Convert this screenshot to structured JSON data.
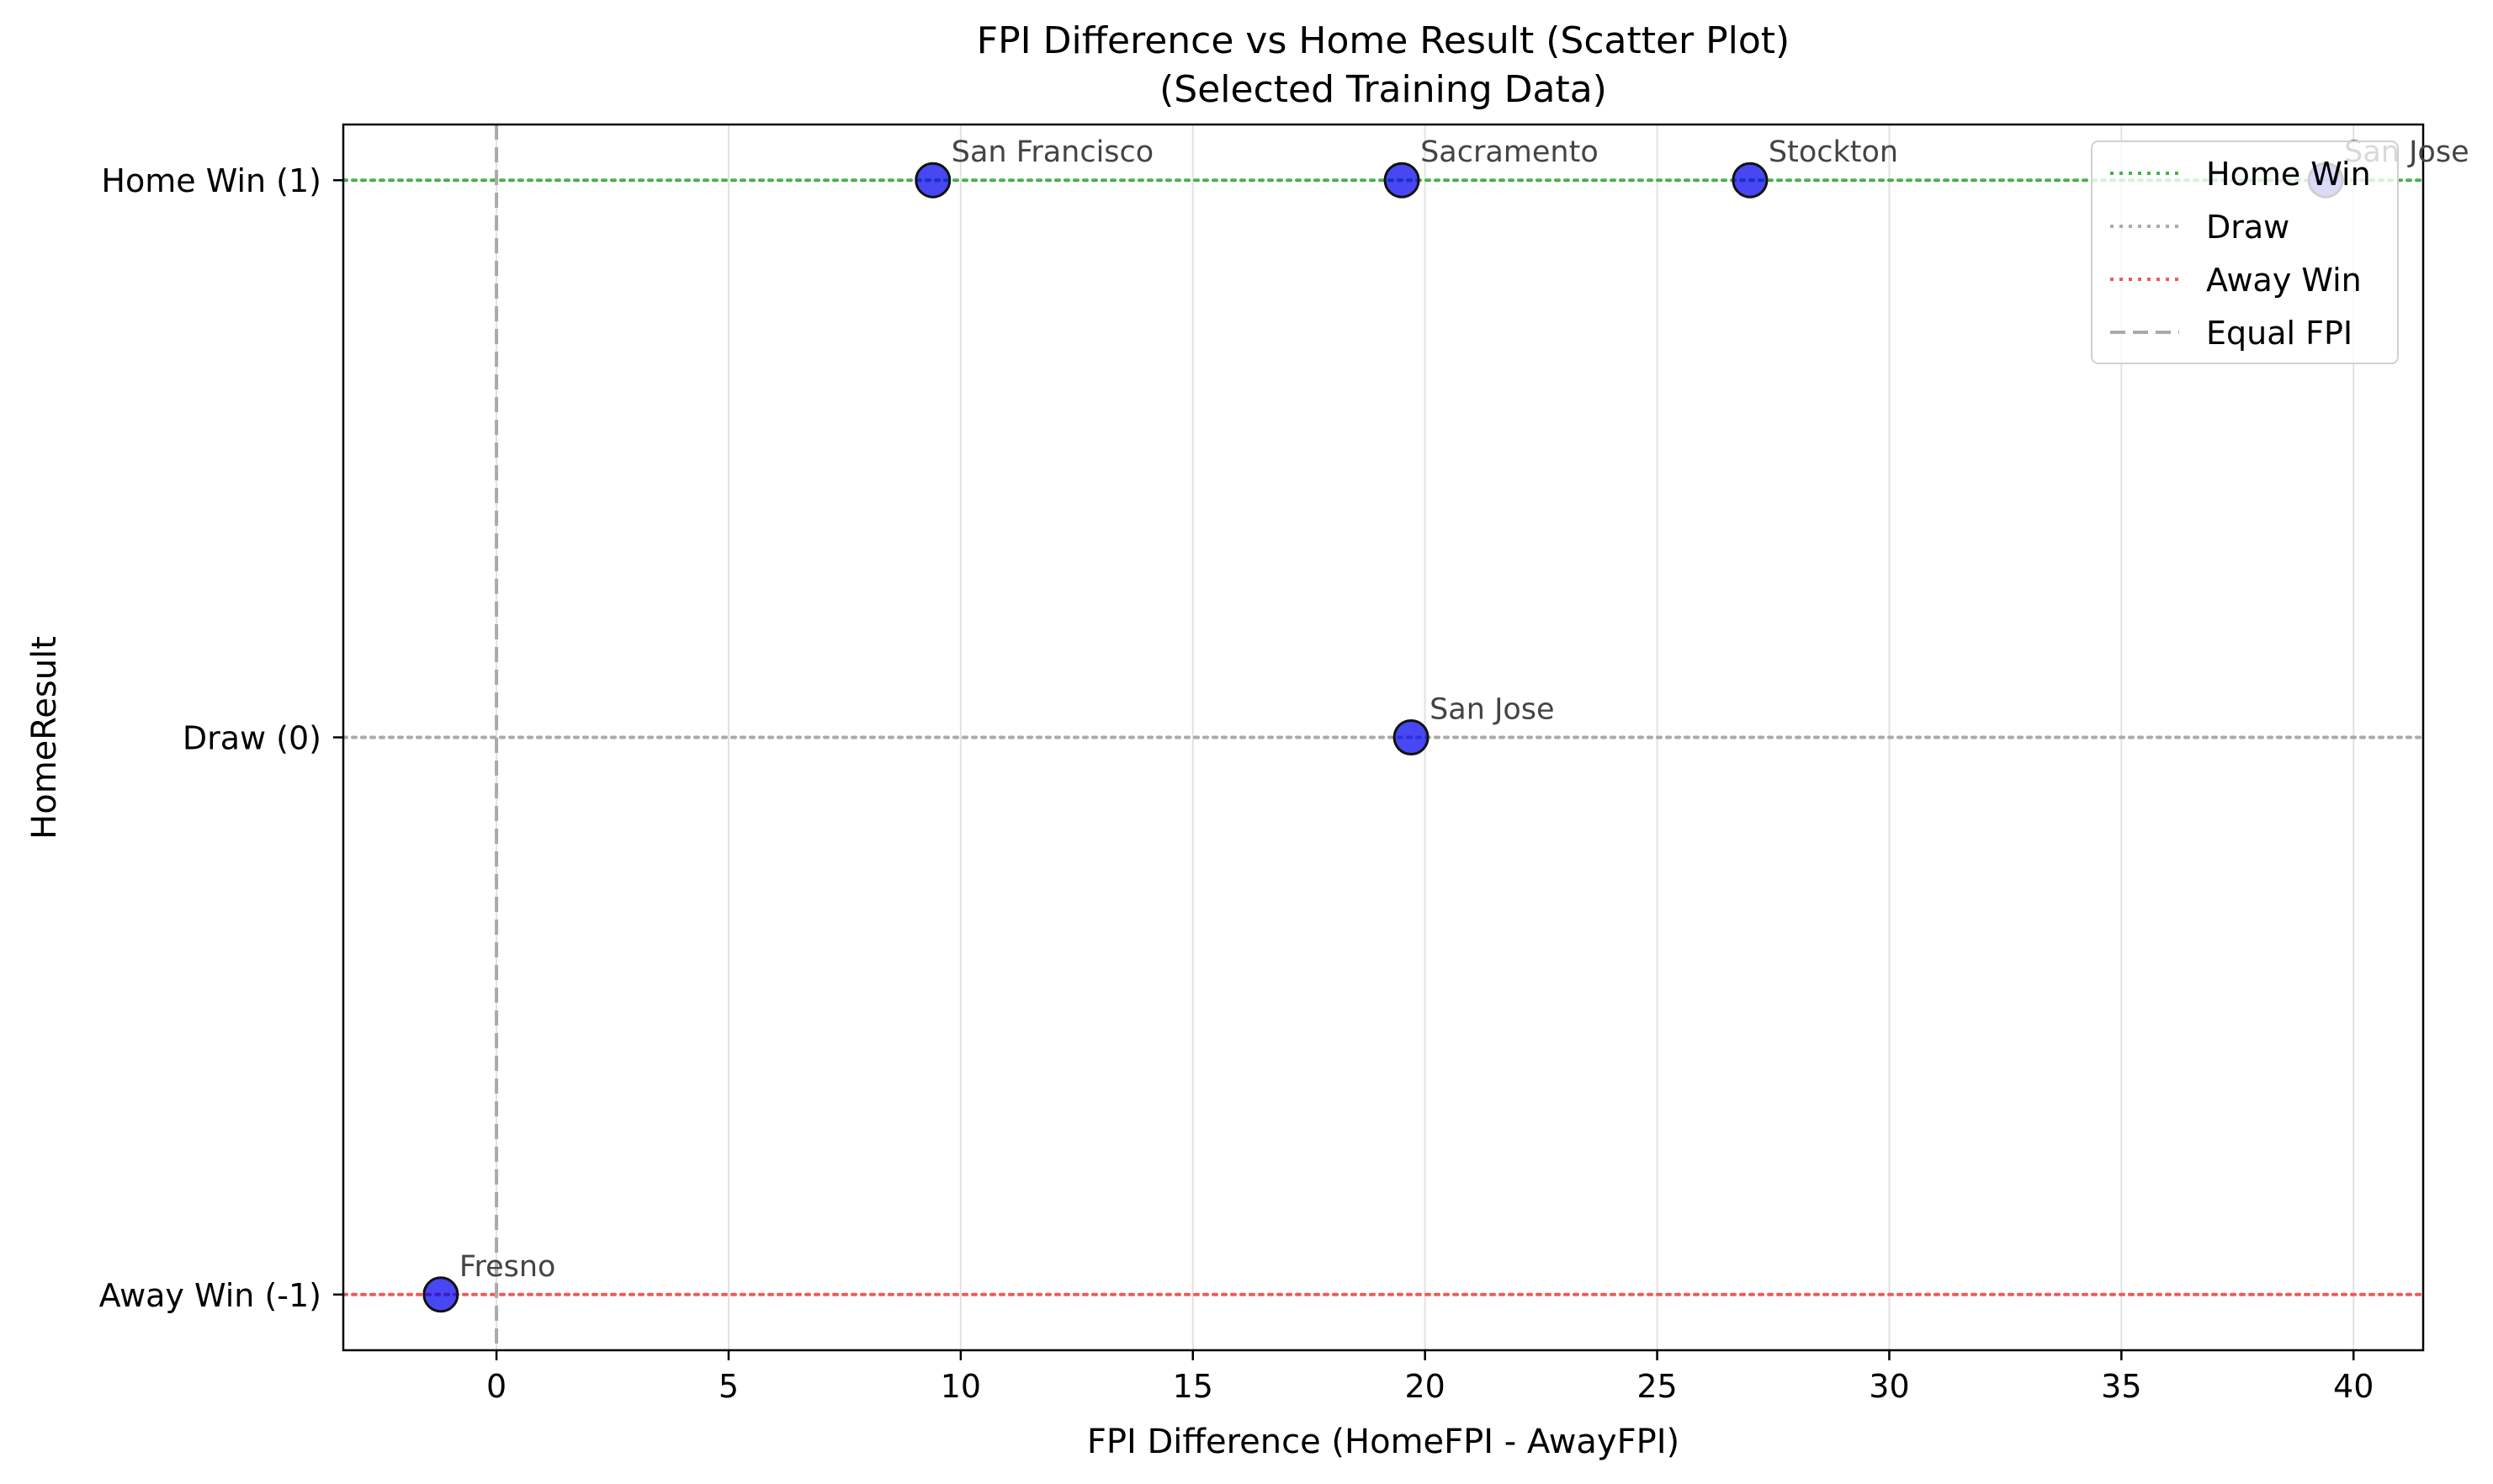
{
  "chart_data": {
    "type": "scatter",
    "title": "FPI Difference vs Home Result (Scatter Plot)",
    "subtitle": "(Selected Training Data)",
    "xlabel": "FPI Difference (HomeFPI - AwayFPI)",
    "ylabel": "HomeResult",
    "xlim": [
      -3.3,
      41.5
    ],
    "ylim": [
      -1.1,
      1.1
    ],
    "x_ticks": [
      0,
      5,
      10,
      15,
      20,
      25,
      30,
      35,
      40
    ],
    "y_ticks": [
      {
        "value": 1,
        "label": "Home Win (1)"
      },
      {
        "value": 0,
        "label": "Draw (0)"
      },
      {
        "value": -1,
        "label": "Away Win (-1)"
      }
    ],
    "grid": "vertical",
    "points": [
      {
        "x": 9.4,
        "y": 1,
        "label": "San Francisco"
      },
      {
        "x": 19.5,
        "y": 1,
        "label": "Sacramento"
      },
      {
        "x": 27.0,
        "y": 1,
        "label": "Stockton"
      },
      {
        "x": 39.4,
        "y": 1,
        "label": "San Jose"
      },
      {
        "x": 19.7,
        "y": 0,
        "label": "San Jose"
      },
      {
        "x": -1.2,
        "y": -1,
        "label": "Fresno"
      }
    ],
    "point_color": "#0000ee",
    "reference_lines": [
      {
        "orientation": "horizontal",
        "value": 1,
        "style": "dotted",
        "color": "#4caf50",
        "name": "Home Win"
      },
      {
        "orientation": "horizontal",
        "value": 0,
        "style": "dotted",
        "color": "#aaaaaa",
        "name": "Draw"
      },
      {
        "orientation": "horizontal",
        "value": -1,
        "style": "dotted",
        "color": "#f05a5a",
        "name": "Away Win"
      },
      {
        "orientation": "vertical",
        "value": 0,
        "style": "dashed",
        "color": "#aaaaaa",
        "name": "Equal FPI"
      }
    ],
    "legend": {
      "position": "top-right",
      "entries": [
        {
          "label": "Home Win",
          "color": "#4caf50",
          "style": "dotted"
        },
        {
          "label": "Draw",
          "color": "#aaaaaa",
          "style": "dotted"
        },
        {
          "label": "Away Win",
          "color": "#f05a5a",
          "style": "dotted"
        },
        {
          "label": "Equal FPI",
          "color": "#aaaaaa",
          "style": "dashed"
        }
      ]
    }
  }
}
